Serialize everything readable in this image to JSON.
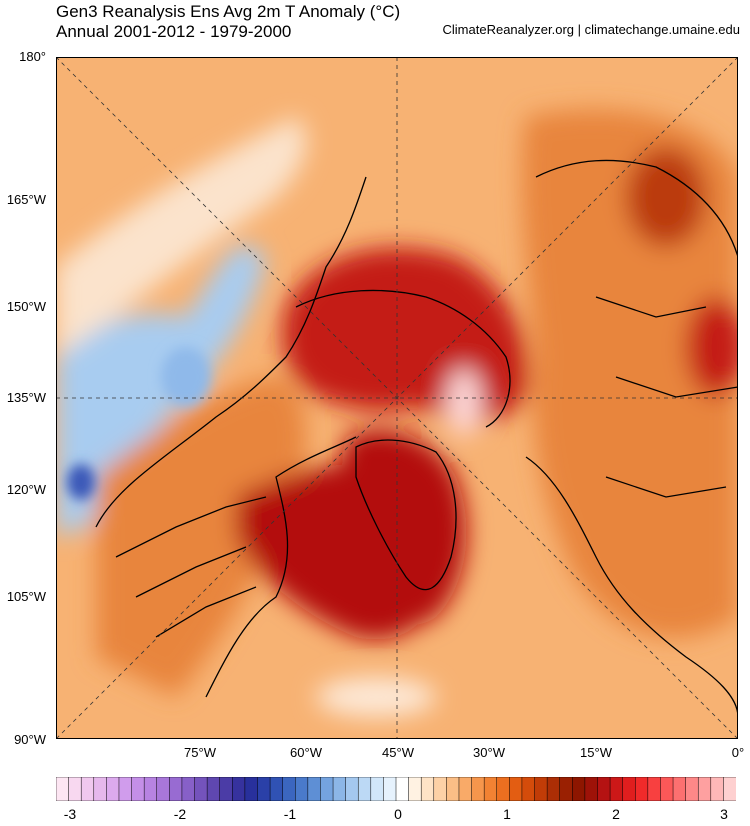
{
  "title": {
    "line1": "Gen3 Reanalysis Ens Avg 2m T Anomaly (°C)",
    "line2": "Annual 2001-2012 - 1979-2000"
  },
  "credit": "ClimateReanalyzer.org | climatechange.umaine.edu",
  "left_labels": [
    "180°",
    "165°W",
    "150°W",
    "135°W",
    "120°W",
    "105°W",
    "90°W"
  ],
  "bottom_labels": [
    "75°W",
    "60°W",
    "45°W",
    "30°W",
    "15°W",
    "0°"
  ],
  "colorbar": {
    "labels": [
      "-3",
      "-2",
      "-1",
      "0",
      "1",
      "2",
      "3"
    ],
    "min": -3,
    "max": 3,
    "colors": [
      "#fde6f3",
      "#f8d8f0",
      "#f0c8ee",
      "#e6b8ec",
      "#dcaaee",
      "#d09cec",
      "#c48fe8",
      "#b783e2",
      "#a877da",
      "#986bd2",
      "#8760c8",
      "#7453bc",
      "#5f47b0",
      "#4b3ca6",
      "#36329e",
      "#28309c",
      "#2a40a8",
      "#3052b4",
      "#3b66c0",
      "#4a7acb",
      "#5e8fd5",
      "#74a3df",
      "#8cb6e7",
      "#a4c8ef",
      "#bcd9f5",
      "#d2e7fa",
      "#e6f2fd",
      "#ffffff",
      "#fff2e2",
      "#fee3c6",
      "#fdd1a6",
      "#fbbe86",
      "#f9aa68",
      "#f6964c",
      "#f28233",
      "#ec6f20",
      "#e35d12",
      "#d44c0b",
      "#c13c07",
      "#ac2e05",
      "#9a2002",
      "#8e1600",
      "#9e1208",
      "#b51212",
      "#cc1818",
      "#e01e1e",
      "#f02a2a",
      "#f84040",
      "#fb5858",
      "#fc7070",
      "#fd8888",
      "#fea0a0",
      "#feb8b8",
      "#fed0d0"
    ]
  },
  "map": {
    "ocean_color": "#f7b273",
    "land_color": "#e8853c",
    "arctic_warm_color": "#c41a12",
    "greenland_color": "#b3110f",
    "pacific_cool_color": "#a8ccf0",
    "coastline_color": "#000000"
  }
}
